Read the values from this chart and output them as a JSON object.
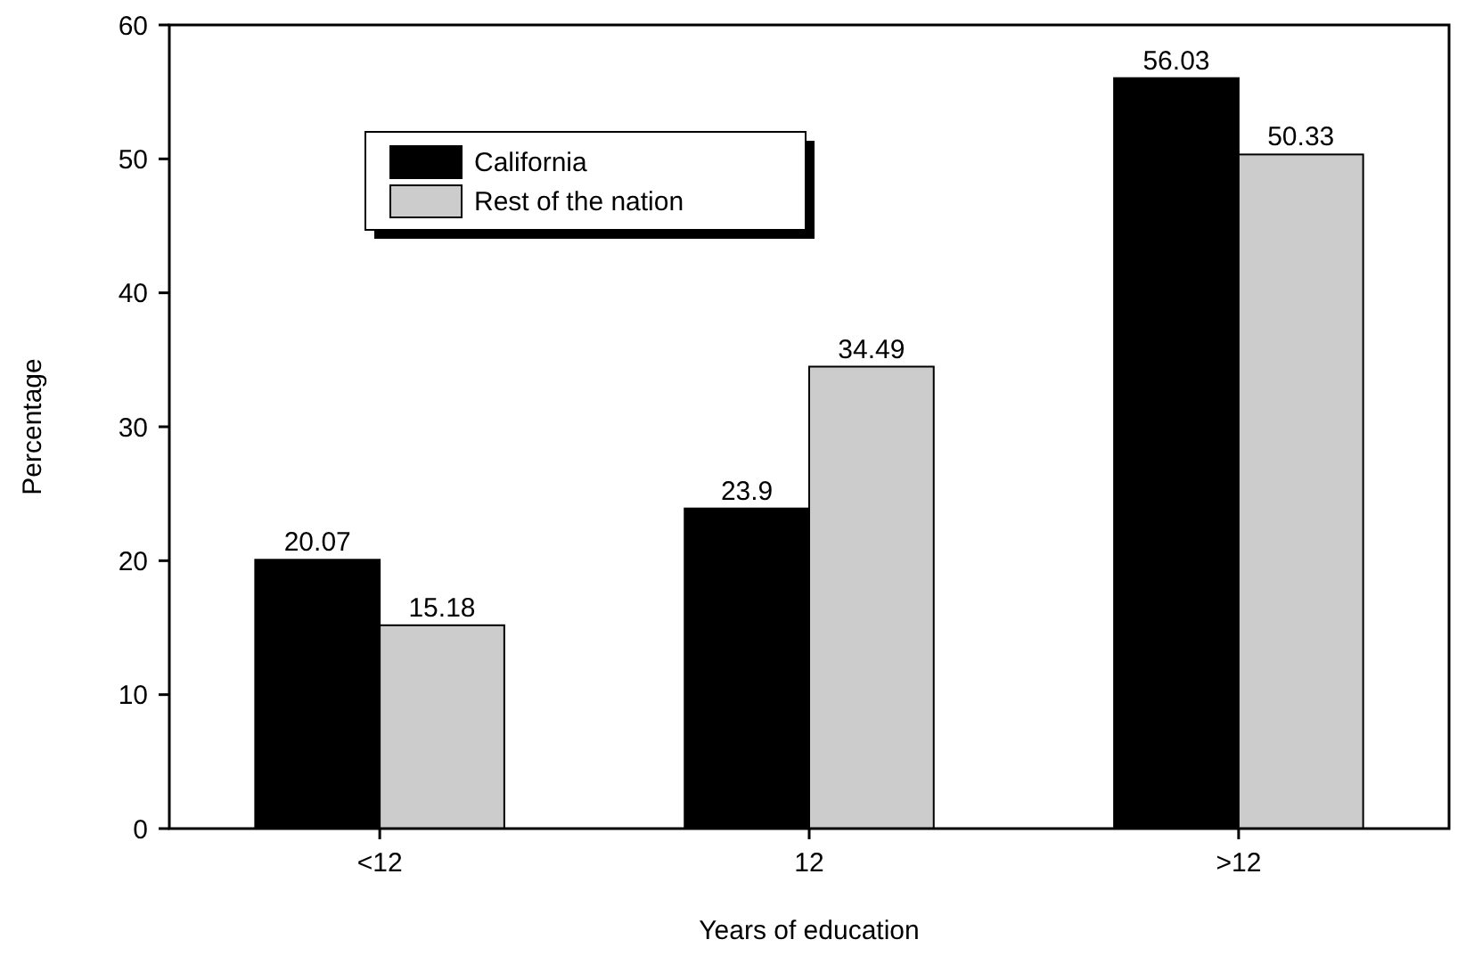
{
  "chart_data": {
    "type": "bar",
    "xlabel": "Years of education",
    "ylabel": "Percentage",
    "categories": [
      "<12",
      "12",
      ">12"
    ],
    "series": [
      {
        "name": "California",
        "color": "#000000",
        "values": [
          20.07,
          23.9,
          56.03
        ]
      },
      {
        "name": "Rest of the nation",
        "color": "#cccccc",
        "values": [
          15.18,
          34.49,
          50.33
        ]
      }
    ],
    "ylim": [
      0,
      60
    ],
    "yticks": [
      0,
      10,
      20,
      30,
      40,
      50,
      60
    ],
    "data_labels": true,
    "legend": "top left",
    "grid": false
  }
}
